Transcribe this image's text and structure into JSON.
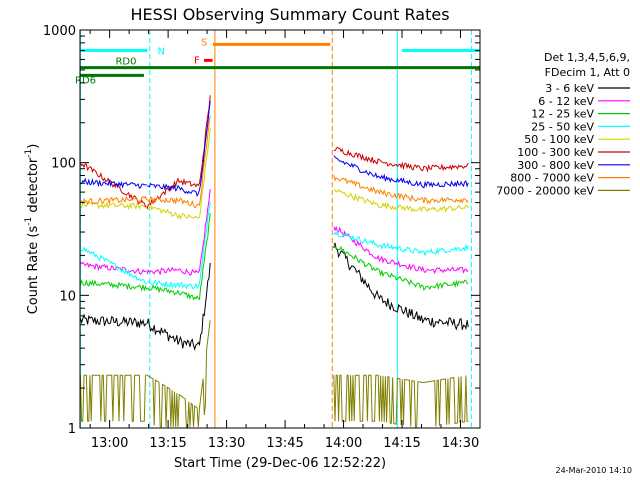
{
  "chart_data": {
    "type": "line",
    "title": "HESSI Observing Summary Count Rates",
    "xlabel": "Start Time (29-Dec-06 12:52:22)",
    "ylabel_main": "Count Rate (s",
    "ylabel_sup1": "-1",
    "ylabel_mid": " detector",
    "ylabel_sup2": "-1",
    "ylabel_end": ")",
    "yscale": "log",
    "ylim": [
      1,
      1000
    ],
    "xlim_min": [
      -7.6,
      95.0
    ],
    "x_ticks": [
      {
        "t": 0,
        "label": "13:00"
      },
      {
        "t": 15,
        "label": "13:15"
      },
      {
        "t": 30,
        "label": "13:30"
      },
      {
        "t": 45,
        "label": "13:45"
      },
      {
        "t": 60,
        "label": "14:00"
      },
      {
        "t": 75,
        "label": "14:15"
      },
      {
        "t": 90,
        "label": "14:30"
      }
    ],
    "y_ticks": [
      {
        "v": 1,
        "label": "1"
      },
      {
        "v": 10,
        "label": "10"
      },
      {
        "v": 100,
        "label": "100"
      },
      {
        "v": 1000,
        "label": "1000"
      }
    ],
    "legend_header_1": "Det 1,3,4,5,6,9,",
    "legend_header_2": "FDecim 1, Att 0",
    "series": [
      {
        "name": "3 - 6 keV",
        "color": "#000000",
        "before": [
          6.5,
          6.2,
          4.5,
          3.9
        ],
        "after": [
          24,
          9.5,
          6.5,
          6.0
        ]
      },
      {
        "name": "6 - 12 keV",
        "color": "#ff00ff",
        "before": [
          17,
          15,
          15.5,
          14
        ],
        "after": [
          33,
          19,
          15.5,
          15.5
        ]
      },
      {
        "name": "12 - 25 keV",
        "color": "#00cc00",
        "before": [
          12.5,
          11.5,
          10.5,
          8.8
        ],
        "after": [
          24,
          15,
          11.5,
          12.5
        ]
      },
      {
        "name": "25 - 50 keV",
        "color": "#00ffff",
        "before": [
          23,
          12.5,
          12,
          11.5
        ],
        "after": [
          30,
          24,
          21,
          23
        ]
      },
      {
        "name": "50 - 100 keV",
        "color": "#d4d400",
        "before": [
          48,
          47,
          40,
          37
        ],
        "after": [
          62,
          48,
          44,
          46
        ]
      },
      {
        "name": "100 - 300 keV",
        "color": "#cc0000",
        "before": [
          100,
          47,
          73,
          63
        ],
        "after": [
          128,
          102,
          90,
          95
        ]
      },
      {
        "name": "300 - 800 keV",
        "color": "#0000ee",
        "before": [
          72,
          67,
          64,
          55
        ],
        "after": [
          108,
          78,
          68,
          70
        ]
      },
      {
        "name": "800 - 7000 keV",
        "color": "#ff8000",
        "before": [
          51,
          53,
          52,
          45
        ],
        "after": [
          78,
          60,
          52,
          53
        ]
      },
      {
        "name": "7000 - 20000 keV",
        "color": "#808000",
        "before": [
          2.5,
          2.5,
          1.8,
          1.2
        ],
        "after": [
          2.5,
          2.5,
          2.2,
          2.5
        ]
      }
    ],
    "flag_bars": [
      {
        "label": "N",
        "color": "#00ffff",
        "label_color": "#00ffff",
        "level": 700,
        "x0": -7.6,
        "x1": 9.7,
        "x2_start": 75,
        "x2_end": 95
      },
      {
        "label": "S",
        "color": "#ff8000",
        "label_color": "#ff8000",
        "level": 780,
        "x0": 26.5,
        "x1": 56.6
      },
      {
        "label": "F",
        "color": "#ff0000",
        "label_color": "#ff0000",
        "level": 590,
        "x0": 24.2,
        "x1": 26.4
      },
      {
        "label": "RD0",
        "color": "#007700",
        "label_color": "#007700",
        "level": 520,
        "x0": -7.6,
        "x1": 95.0
      },
      {
        "label": "RD6",
        "color": "#007700",
        "label_color": "#007700",
        "level": 455,
        "x0": -7.6,
        "x1": 8.8
      }
    ],
    "night_lines": [
      {
        "t": -7.5,
        "color": "#00ffff",
        "style": "solid"
      },
      {
        "t": 10.3,
        "color": "#00ffff",
        "style": "dashed"
      },
      {
        "t": 27.0,
        "color": "#ff8000",
        "style": "solid"
      },
      {
        "t": 57.1,
        "color": "#ff8000",
        "style": "dashed"
      },
      {
        "t": 73.8,
        "color": "#00ffff",
        "style": "solid"
      },
      {
        "t": 92.8,
        "color": "#00ffff",
        "style": "dashed"
      }
    ]
  },
  "footer": {
    "timestamp": "24-Mar-2010 14:10"
  }
}
